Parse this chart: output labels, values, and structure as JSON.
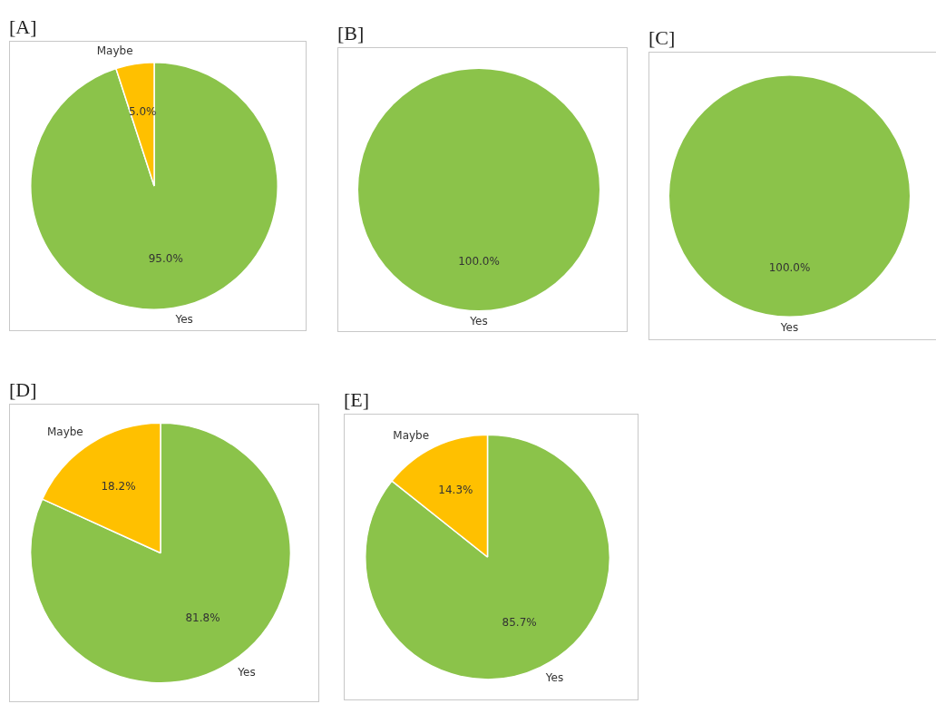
{
  "chart_data": [
    {
      "type": "pie",
      "title": "[A]",
      "categories": [
        "Maybe",
        "Yes"
      ],
      "values": [
        5.0,
        95.0
      ],
      "colors": [
        "#ffc000",
        "#8bc34a"
      ],
      "value_labels": [
        "5.0%",
        "95.0%"
      ],
      "legend": false
    },
    {
      "type": "pie",
      "title": "[B]",
      "categories": [
        "Yes"
      ],
      "values": [
        100
      ],
      "colors": [
        "#8bc34a"
      ],
      "value_labels": [
        "100.0%"
      ],
      "legend": false
    },
    {
      "type": "pie",
      "title": "[C]",
      "categories": [
        "Yes"
      ],
      "values": [
        100
      ],
      "colors": [
        "#8bc34a"
      ],
      "value_labels": [
        "100.0%"
      ],
      "legend": false
    },
    {
      "type": "pie",
      "title": "[D]",
      "categories": [
        "Maybe",
        "Yes"
      ],
      "values": [
        18.2,
        81.8
      ],
      "colors": [
        "#ffc000",
        "#8bc34a"
      ],
      "value_labels": [
        "18.2%",
        "81.8%"
      ],
      "legend": false
    },
    {
      "type": "pie",
      "title": "[E]",
      "categories": [
        "Maybe",
        "Yes"
      ],
      "values": [
        14.3,
        85.7
      ],
      "colors": [
        "#ffc000",
        "#8bc34a"
      ],
      "value_labels": [
        "14.3%",
        "85.7%"
      ],
      "legend": false
    }
  ]
}
